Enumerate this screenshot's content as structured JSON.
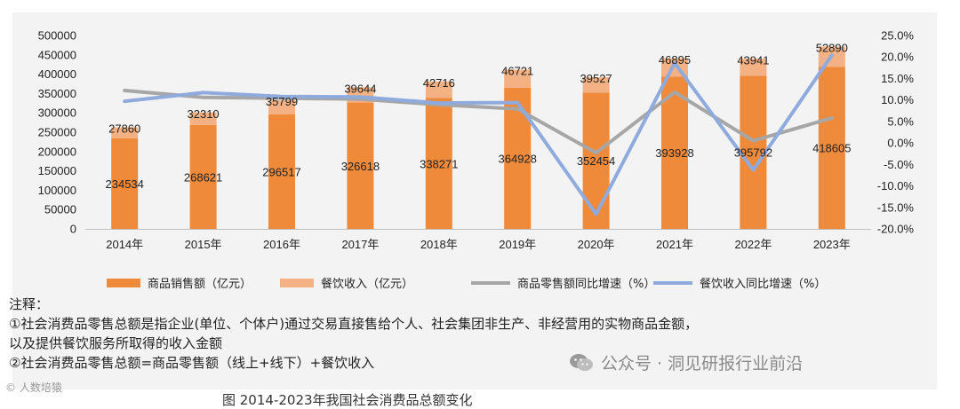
{
  "chart_data": {
    "type": "bar",
    "categories": [
      "2014年",
      "2015年",
      "2016年",
      "2017年",
      "2018年",
      "2019年",
      "2020年",
      "2021年",
      "2022年",
      "2023年"
    ],
    "series": [
      {
        "name": "商品销售额（亿元）",
        "kind": "bar",
        "stack": "total",
        "color": "#ef8a3b",
        "values": [
          234534,
          268621,
          296517,
          326618,
          338271,
          364928,
          352454,
          393928,
          395792,
          418605
        ]
      },
      {
        "name": "餐饮收入（亿元）",
        "kind": "bar",
        "stack": "total",
        "color": "#f4b183",
        "values": [
          27860,
          32310,
          35799,
          39644,
          42716,
          46721,
          39527,
          46895,
          43941,
          52890
        ]
      },
      {
        "name": "商品零售额同比增速（%）",
        "kind": "line",
        "axis": "right",
        "color": "#a6a6a6",
        "values": [
          12.2,
          10.6,
          10.4,
          10.2,
          8.9,
          7.9,
          -2.3,
          11.8,
          0.5,
          5.8
        ]
      },
      {
        "name": "餐饮收入同比增速（%）",
        "kind": "line",
        "axis": "right",
        "color": "#8faadc",
        "values": [
          9.7,
          11.7,
          10.8,
          10.7,
          9.3,
          9.4,
          -16.6,
          18.6,
          -6.3,
          20.4
        ]
      }
    ],
    "y_left": {
      "min": 0,
      "max": 500000,
      "ticks": [
        0,
        50000,
        100000,
        150000,
        200000,
        250000,
        300000,
        350000,
        400000,
        450000,
        500000
      ]
    },
    "y_right": {
      "min": -20,
      "max": 25,
      "ticks": [
        "-20.0%",
        "-15.0%",
        "-10.0%",
        "-5.0%",
        "0.0%",
        "5.0%",
        "10.0%",
        "15.0%",
        "20.0%",
        "25.0%"
      ]
    },
    "legend_position": "bottom",
    "grid": false
  },
  "notes": {
    "header": "注释：",
    "line1": "①社会消费品零售总额是指企业(单位、个体户)通过交易直接售给个人、社会集团非生产、非经营用的实物商品金额，",
    "line2": "以及提供餐饮服务所取得的收入金额",
    "line3": "②社会消费品零售总额=商品零售额（线上+线下）+餐饮收入"
  },
  "watermark": {
    "text": "公众号 · 洞见研报行业前沿"
  },
  "corner_mark": "© 人数培猿",
  "caption": "图 2014-2023年我国社会消费品总额变化"
}
